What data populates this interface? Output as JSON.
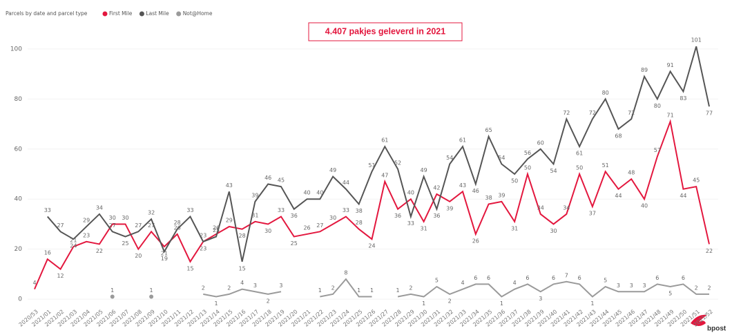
{
  "chart_data": {
    "type": "line",
    "title": "Parcels by date and parcel type",
    "annotation": "4.407 pakjes geleverd in 2021",
    "logo": "bpost",
    "categories": [
      "2020/53",
      "2021/01",
      "2021/02",
      "2021/03",
      "2021/04",
      "2021/05",
      "2021/06",
      "2021/07",
      "2021/08",
      "2021/09",
      "2021/10",
      "2021/11",
      "2021/12",
      "2021/13",
      "2021/14",
      "2021/15",
      "2021/16",
      "2021/17",
      "2021/18",
      "2021/19",
      "2021/20",
      "2021/21",
      "2021/22",
      "2021/23",
      "2021/24",
      "2021/25",
      "2021/26",
      "2021/27",
      "2021/28",
      "2021/29",
      "2021/30",
      "2021/31",
      "2021/32",
      "2021/33",
      "2021/34",
      "2021/35",
      "2021/36",
      "2021/37",
      "2021/38",
      "2021/39",
      "2021/40",
      "2021/41",
      "2021/42",
      "2021/43",
      "2021/44",
      "2021/45",
      "2021/46",
      "2021/47",
      "2021/48",
      "2021/49",
      "2021/50",
      "2021/51",
      "2021/52"
    ],
    "series": [
      {
        "name": "First Mile",
        "color": "#e3173e",
        "values": [
          4,
          16,
          12,
          21,
          23,
          22,
          30,
          30,
          20,
          27,
          21,
          26,
          15,
          23,
          26,
          29,
          28,
          31,
          30,
          33,
          25,
          26,
          27,
          30,
          33,
          28,
          24,
          47,
          36,
          40,
          31,
          42,
          39,
          43,
          26,
          38,
          39,
          31,
          50,
          34,
          30,
          34,
          50,
          37,
          51,
          44,
          48,
          40,
          57,
          71,
          44,
          45,
          22
        ]
      },
      {
        "name": "Last Mile",
        "color": "#555555",
        "values": [
          null,
          33,
          27,
          24,
          29,
          34,
          27,
          25,
          27,
          32,
          19,
          28,
          33,
          23,
          25,
          43,
          15,
          39,
          46,
          45,
          36,
          40,
          40,
          49,
          44,
          38,
          51,
          61,
          52,
          33,
          49,
          36,
          54,
          61,
          46,
          65,
          54,
          50,
          56,
          60,
          54,
          72,
          61,
          72,
          80,
          68,
          72,
          89,
          80,
          91,
          83,
          101,
          77
        ]
      },
      {
        "name": "Not@Home",
        "color": "#9a9a9a",
        "values": [
          null,
          null,
          null,
          null,
          null,
          null,
          1,
          null,
          null,
          1,
          null,
          null,
          null,
          2,
          1,
          2,
          4,
          3,
          2,
          3,
          null,
          null,
          1,
          2,
          8,
          1,
          1,
          null,
          1,
          2,
          1,
          5,
          2,
          4,
          6,
          6,
          1,
          4,
          6,
          3,
          6,
          7,
          6,
          1,
          5,
          3,
          3,
          3,
          6,
          5,
          6,
          2,
          2
        ]
      }
    ],
    "ylim": [
      -3,
      103
    ],
    "yticks": [
      0,
      20,
      40,
      60,
      80,
      100
    ],
    "grid": true
  }
}
